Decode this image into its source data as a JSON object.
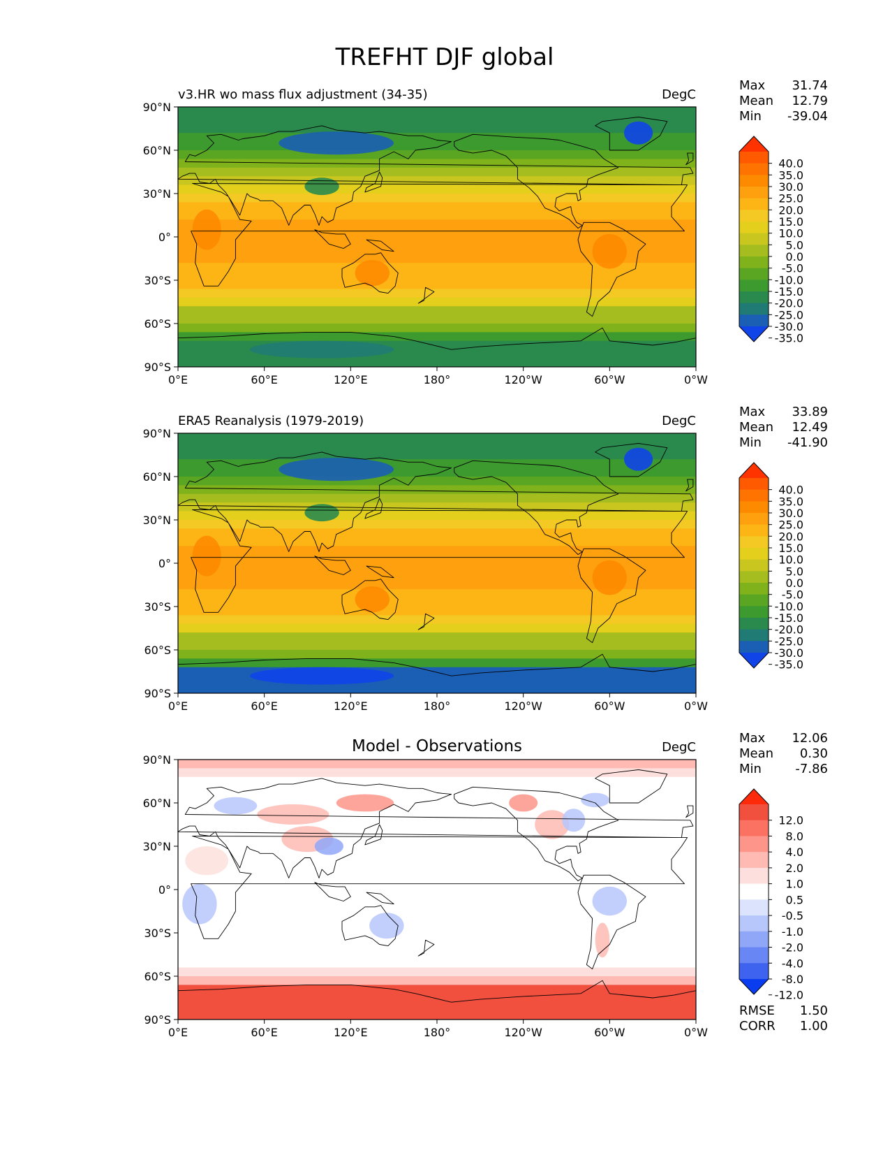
{
  "figure": {
    "title": "TREFHT DJF global"
  },
  "axes_labels": {
    "lat_ticks": [
      "90°N",
      "60°N",
      "30°N",
      "0°",
      "30°S",
      "60°S",
      "90°S"
    ],
    "lon_ticks": [
      "0°E",
      "60°E",
      "120°E",
      "180°",
      "120°W",
      "60°W",
      "0°W"
    ]
  },
  "chart_data": [
    {
      "type": "heatmap",
      "name": "test",
      "title": "v3.HR wo mass flux adjustment (34-35)",
      "units": "DegC",
      "stats": {
        "max_label": "Max",
        "mean_label": "Mean",
        "min_label": "Min",
        "max": "31.74",
        "mean": "12.79",
        "min": "-39.04"
      },
      "colorbar": {
        "levels": [
          "40.0",
          "35.0",
          "30.0",
          "25.0",
          "20.0",
          "15.0",
          "10.0",
          "5.0",
          "0.0",
          "-5.0",
          "-10.0",
          "-15.0",
          "-20.0",
          "-25.0",
          "-30.0",
          "-35.0"
        ],
        "colors": [
          "#ff3300",
          "#ff5a00",
          "#ff7400",
          "#fe8a00",
          "#ffa10e",
          "#fdb515",
          "#f4c923",
          "#e3cf1c",
          "#c9c71f",
          "#a5bd1e",
          "#7fb21b",
          "#5aa623",
          "#3c9a2f",
          "#2a8a4e",
          "#1f7b73",
          "#1b5fb4",
          "#1044e8"
        ],
        "extend": "both"
      },
      "x_range": [
        0,
        360
      ],
      "y_range": [
        -90,
        90
      ]
    },
    {
      "type": "heatmap",
      "name": "reference",
      "title": "ERA5 Reanalysis (1979-2019)",
      "units": "DegC",
      "stats": {
        "max_label": "Max",
        "mean_label": "Mean",
        "min_label": "Min",
        "max": "33.89",
        "mean": "12.49",
        "min": "-41.90"
      },
      "colorbar": {
        "levels": [
          "40.0",
          "35.0",
          "30.0",
          "25.0",
          "20.0",
          "15.0",
          "10.0",
          "5.0",
          "0.0",
          "-5.0",
          "-10.0",
          "-15.0",
          "-20.0",
          "-25.0",
          "-30.0",
          "-35.0"
        ],
        "colors": [
          "#ff3300",
          "#ff5a00",
          "#ff7400",
          "#fe8a00",
          "#ffa10e",
          "#fdb515",
          "#f4c923",
          "#e3cf1c",
          "#c9c71f",
          "#a5bd1e",
          "#7fb21b",
          "#5aa623",
          "#3c9a2f",
          "#2a8a4e",
          "#1f7b73",
          "#1b5fb4",
          "#1044e8"
        ],
        "extend": "both"
      },
      "x_range": [
        0,
        360
      ],
      "y_range": [
        -90,
        90
      ]
    },
    {
      "type": "heatmap",
      "name": "difference",
      "title": "Model - Observations",
      "units": "DegC",
      "stats": {
        "max_label": "Max",
        "mean_label": "Mean",
        "min_label": "Min",
        "max": "12.06",
        "mean": "0.30",
        "min": "-7.86",
        "rmse_label": "RMSE",
        "rmse": "1.50",
        "corr_label": "CORR",
        "corr": "1.00"
      },
      "colorbar": {
        "levels": [
          "12.0",
          "8.0",
          "4.0",
          "2.0",
          "1.0",
          "0.5",
          "-0.5",
          "-1.0",
          "-2.0",
          "-4.0",
          "-8.0",
          "-12.0"
        ],
        "colors": [
          "#ff2a0a",
          "#f1503f",
          "#fb7263",
          "#fd958a",
          "#febab3",
          "#fde0dd",
          "#ffffff",
          "#dce3fd",
          "#b7c7fb",
          "#90a7f8",
          "#6987f4",
          "#3e63ef",
          "#0a3cf0"
        ],
        "extend": "both"
      },
      "x_range": [
        0,
        360
      ],
      "y_range": [
        -90,
        90
      ]
    }
  ]
}
